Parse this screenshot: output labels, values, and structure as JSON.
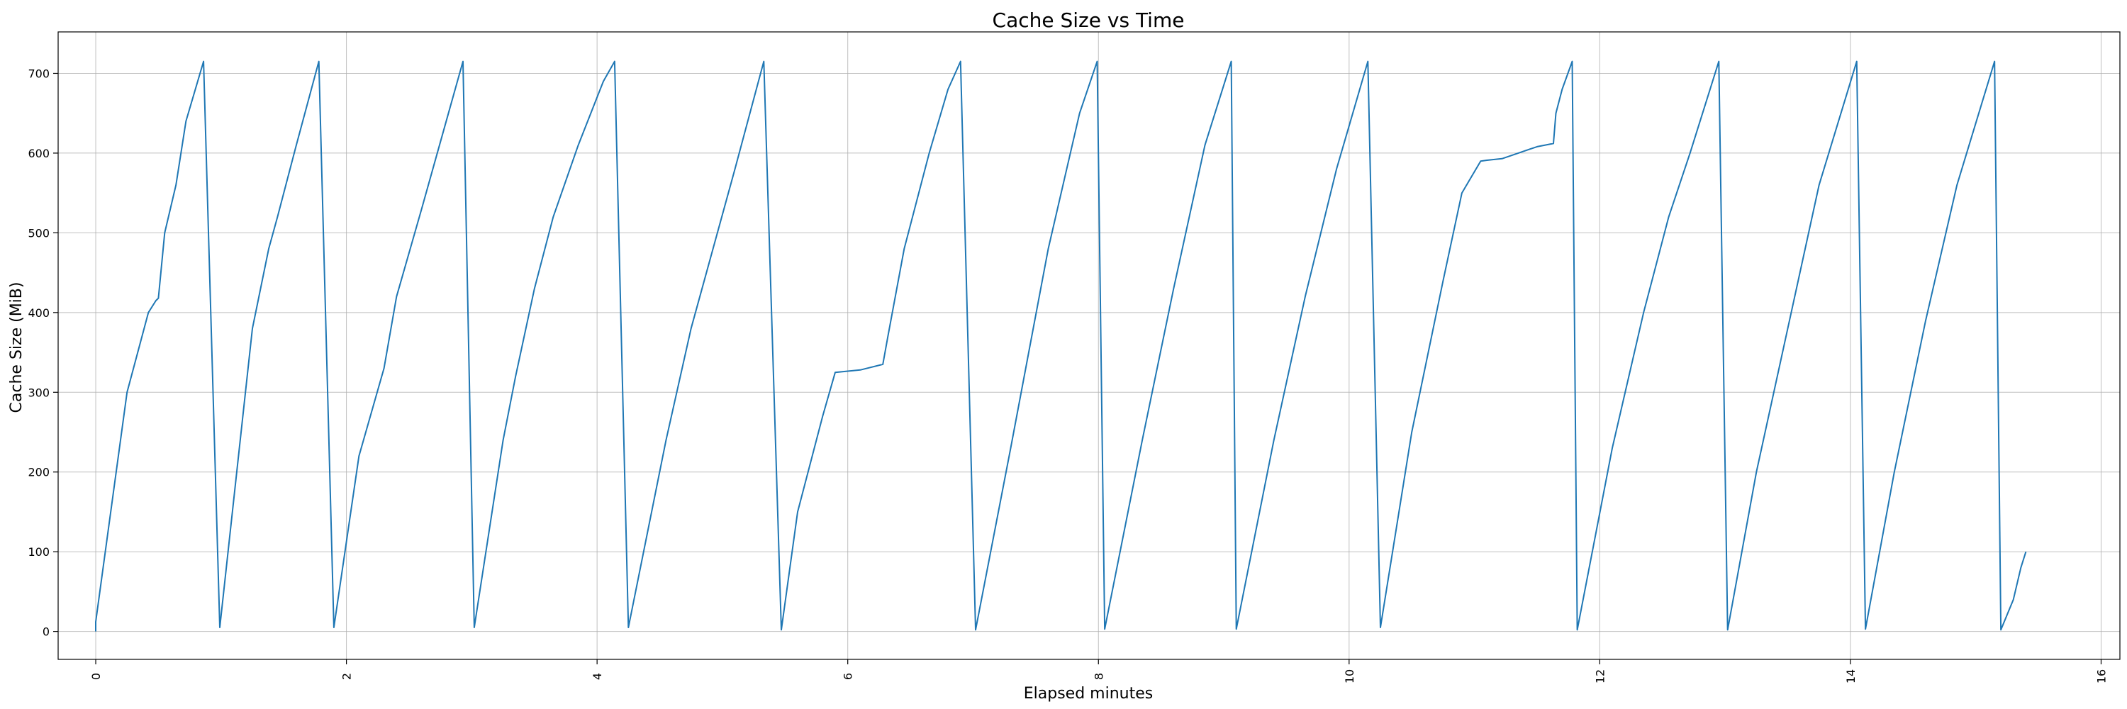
{
  "chart_data": {
    "type": "line",
    "title": "Cache Size vs Time",
    "xlabel": "Elapsed minutes",
    "ylabel": "Cache Size (MiB)",
    "xlim": [
      -0.3,
      16.15
    ],
    "ylim": [
      -35,
      752
    ],
    "xticks": [
      0,
      2,
      4,
      6,
      8,
      10,
      12,
      14,
      16
    ],
    "yticks": [
      0,
      100,
      200,
      300,
      400,
      500,
      600,
      700
    ],
    "grid": true,
    "color": "#1f77b4",
    "series": [
      {
        "x": [
          0.0,
          0.0,
          0.25,
          0.42,
          0.48,
          0.5,
          0.55,
          0.64,
          0.72,
          0.86,
          0.86,
          0.99,
          0.99,
          1.25,
          1.38,
          1.45,
          1.6,
          1.78,
          1.78,
          1.9,
          1.9,
          2.1,
          2.3,
          2.4,
          2.6,
          2.93,
          2.93,
          3.02,
          3.02,
          3.25,
          3.35,
          3.5,
          3.65,
          3.85,
          4.05,
          4.14,
          4.14,
          4.25,
          4.25,
          4.55,
          4.75,
          5.1,
          5.33,
          5.33,
          5.47,
          5.47,
          5.6,
          5.8,
          5.9,
          6.1,
          6.28,
          6.32,
          6.45,
          6.65,
          6.8,
          6.9,
          6.9,
          7.02,
          7.02,
          7.3,
          7.6,
          7.85,
          7.99,
          7.99,
          8.05,
          8.05,
          8.35,
          8.6,
          8.85,
          9.06,
          9.06,
          9.1,
          9.1,
          9.4,
          9.65,
          9.9,
          10.15,
          10.15,
          10.25,
          10.25,
          10.5,
          10.75,
          10.9,
          11.05,
          11.1,
          11.22,
          11.35,
          11.5,
          11.63,
          11.65,
          11.7,
          11.78,
          11.78,
          11.82,
          11.82,
          12.1,
          12.35,
          12.55,
          12.72,
          12.95,
          12.95,
          13.02,
          13.02,
          13.25,
          13.5,
          13.75,
          14.05,
          14.05,
          14.12,
          14.12,
          14.35,
          14.6,
          14.85,
          15.15,
          15.15,
          15.2,
          15.2,
          15.3,
          15.36,
          15.4
        ],
        "y": [
          0,
          12,
          300,
          400,
          415,
          418,
          500,
          560,
          640,
          715,
          715,
          5,
          5,
          380,
          480,
          520,
          610,
          715,
          715,
          5,
          5,
          220,
          330,
          420,
          530,
          715,
          715,
          5,
          5,
          240,
          320,
          430,
          520,
          610,
          690,
          715,
          715,
          5,
          5,
          240,
          380,
          580,
          715,
          715,
          2,
          2,
          150,
          270,
          325,
          328,
          335,
          370,
          480,
          600,
          680,
          715,
          715,
          2,
          2,
          230,
          480,
          650,
          715,
          715,
          3,
          3,
          240,
          430,
          610,
          715,
          715,
          3,
          3,
          240,
          420,
          580,
          715,
          715,
          5,
          5,
          250,
          440,
          550,
          590,
          591,
          593,
          600,
          608,
          612,
          650,
          680,
          715,
          715,
          2,
          2,
          230,
          400,
          520,
          600,
          715,
          715,
          2,
          2,
          200,
          380,
          560,
          715,
          715,
          3,
          3,
          200,
          390,
          560,
          715,
          715,
          2,
          2,
          40,
          80,
          100
        ]
      }
    ]
  }
}
